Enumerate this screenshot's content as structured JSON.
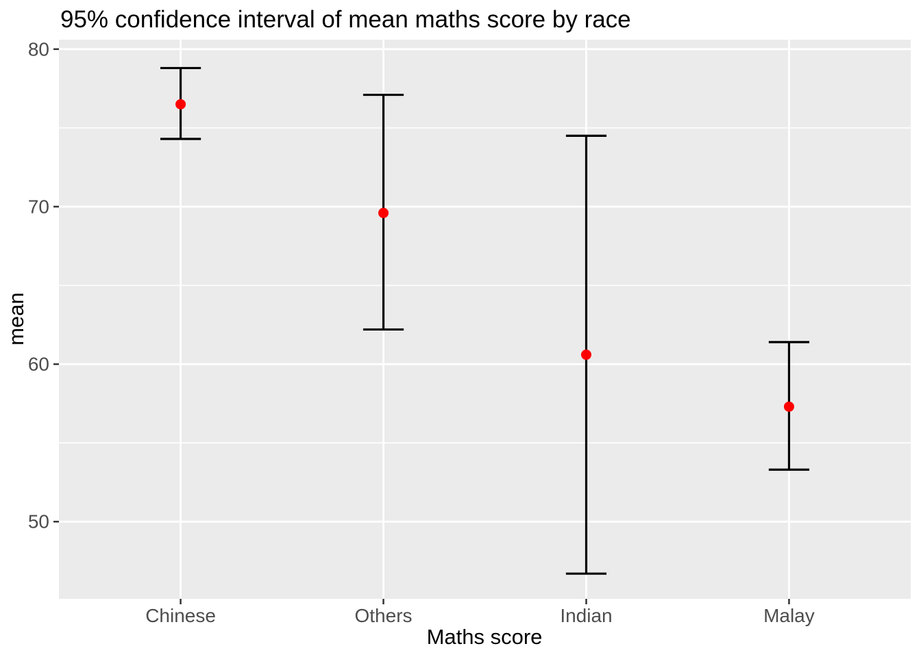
{
  "chart_data": {
    "type": "errorbar",
    "title": "95% confidence interval of mean maths score by race",
    "xlabel": "Maths score",
    "ylabel": "mean",
    "categories": [
      "Chinese",
      "Others",
      "Indian",
      "Malay"
    ],
    "series": [
      {
        "name": "mean",
        "values": [
          76.5,
          69.6,
          60.6,
          57.3
        ]
      },
      {
        "name": "ci_lower",
        "values": [
          74.3,
          62.2,
          46.7,
          53.3
        ]
      },
      {
        "name": "ci_upper",
        "values": [
          78.8,
          77.1,
          74.5,
          61.4
        ]
      }
    ],
    "ylim": [
      45.1,
      80.6
    ],
    "yticks": [
      50,
      60,
      70,
      80
    ],
    "yticks_minor": [
      55,
      65,
      75
    ],
    "grid": true,
    "legend": false,
    "colors": {
      "point": "#FF0000",
      "errorbar": "#000000",
      "panel_bg": "#EBEBEB",
      "gridline": "#FFFFFF",
      "tick_label": "#4D4D4D",
      "tick_mark": "#333333",
      "title": "#000000",
      "background": "#FFFFFF"
    }
  }
}
